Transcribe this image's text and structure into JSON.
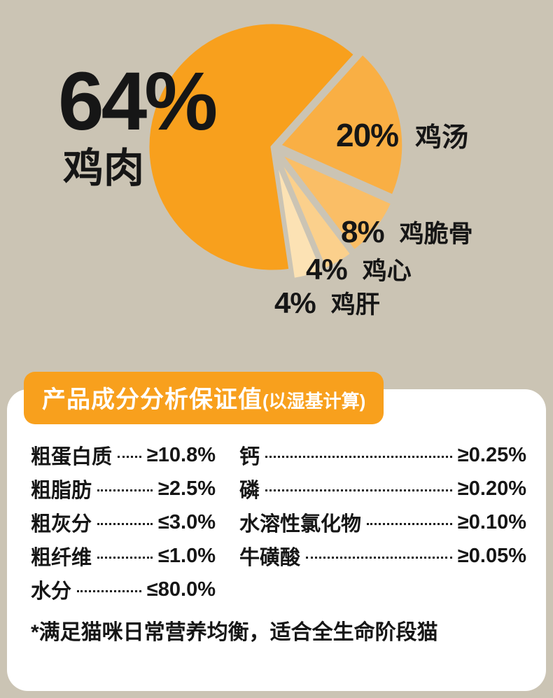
{
  "theme": {
    "background": "#CBC4B4",
    "card": "#FFFFFF",
    "accent": "#F8A01D",
    "text": "#161616",
    "badge_text": "#FFFFFF"
  },
  "chart_data": {
    "type": "pie",
    "title": "",
    "unit": "%",
    "legend_position": "callouts",
    "start_angle_deg": 48,
    "direction": "clockwise",
    "slices": [
      {
        "id": "chicken",
        "label": "鸡肉",
        "pct": 64,
        "pct_label": "64%",
        "color": "#F8A01D"
      },
      {
        "id": "chicken-broth",
        "label": "鸡汤",
        "pct": 20,
        "pct_label": "20%",
        "color": "#F9AF44"
      },
      {
        "id": "chicken-cartilage",
        "label": "鸡脆骨",
        "pct": 8,
        "pct_label": "8%",
        "color": "#FABE66"
      },
      {
        "id": "chicken-heart",
        "label": "鸡心",
        "pct": 4,
        "pct_label": "4%",
        "color": "#FBD08C"
      },
      {
        "id": "chicken-liver",
        "label": "鸡肝",
        "pct": 4,
        "pct_label": "4%",
        "color": "#FCE2B4"
      }
    ]
  },
  "nutrition": {
    "header_title": "产品成分分析保证值",
    "header_suffix": "(以湿基计算)",
    "left": [
      {
        "label": "粗蛋白质",
        "value": "≥10.8%"
      },
      {
        "label": "粗脂肪",
        "value": "≥2.5%"
      },
      {
        "label": "粗灰分",
        "value": "≤3.0%"
      },
      {
        "label": "粗纤维",
        "value": "≤1.0%"
      },
      {
        "label": "水分",
        "value": "≤80.0%"
      }
    ],
    "right": [
      {
        "label": "钙",
        "value": "≥0.25%"
      },
      {
        "label": "磷",
        "value": "≥0.20%"
      },
      {
        "label": "水溶性氯化物",
        "value": "≥0.10%"
      },
      {
        "label": "牛磺酸",
        "value": "≥0.05%"
      }
    ],
    "footnote": "*满足猫咪日常营养均衡，适合全生命阶段猫"
  }
}
